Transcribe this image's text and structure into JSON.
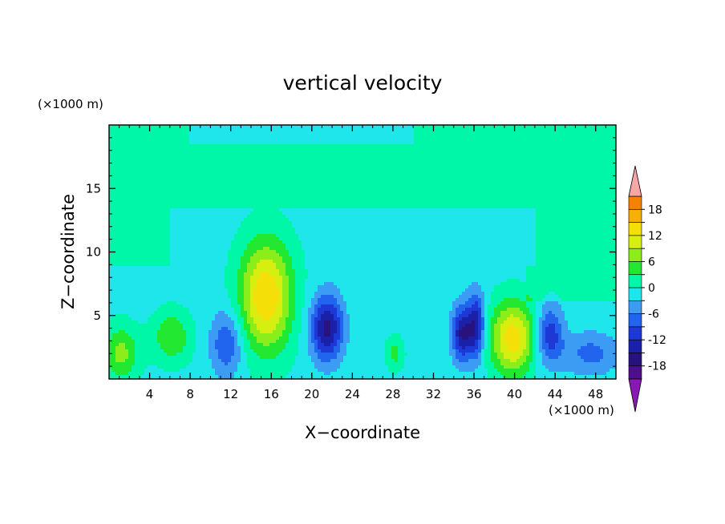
{
  "chart_data": {
    "type": "heatmap",
    "title": "vertical velocity",
    "xlabel": "X−coordinate",
    "ylabel": "Z−coordinate",
    "x_unit": "(×1000 m)",
    "y_unit": "(×1000 m)",
    "xlim": [
      0,
      50
    ],
    "ylim": [
      0,
      20
    ],
    "x_ticks": [
      4,
      8,
      12,
      16,
      20,
      24,
      28,
      32,
      36,
      40,
      44,
      48
    ],
    "y_ticks": [
      5,
      10,
      15
    ],
    "colorbar": {
      "levels": [
        -21,
        -18,
        -15,
        -12,
        -9,
        -6,
        -3,
        0,
        3,
        6,
        9,
        12,
        15,
        18,
        21
      ],
      "labels": [
        18,
        12,
        6,
        0,
        -6,
        -12,
        -18
      ],
      "colors": [
        "#4b0f8c",
        "#28137e",
        "#1a20a8",
        "#1e38d6",
        "#2164ee",
        "#3c9cf3",
        "#1ee6ea",
        "#00f7a8",
        "#22e832",
        "#8bed19",
        "#d6ef11",
        "#f5df08",
        "#f7b006",
        "#f58204",
        "#f14a04",
        "#e8160a",
        "#f7a6a6"
      ],
      "underflow_color": "#8a18b4",
      "overflow_color": "#f7a6a6"
    },
    "features": [
      {
        "x": 15.5,
        "z": 6.5,
        "w": 5.5,
        "value": 16,
        "sx": 1.8,
        "sz": 3.0
      },
      {
        "x": 39.8,
        "z": 3.2,
        "w": 5.0,
        "value": 15,
        "sx": 1.5,
        "sz": 2.0
      },
      {
        "x": 1.2,
        "z": 2.0,
        "w": 2.0,
        "value": 8,
        "sx": 1.2,
        "sz": 1.5
      },
      {
        "x": 6.2,
        "z": 3.3,
        "w": 1.7,
        "value": 7,
        "sx": 1.3,
        "sz": 1.4
      },
      {
        "x": 28.2,
        "z": 2.0,
        "w": 0.8,
        "value": 5,
        "sx": 0.6,
        "sz": 0.9
      },
      {
        "x": 21.5,
        "z": 4.0,
        "w": 3.0,
        "value": -15,
        "sx": 1.1,
        "sz": 1.8
      },
      {
        "x": 34.8,
        "z": 3.6,
        "w": 3.0,
        "value": -14,
        "sx": 0.7,
        "sz": 1.5
      },
      {
        "x": 36.2,
        "z": 4.2,
        "w": 3.0,
        "value": -13,
        "sx": 0.6,
        "sz": 1.8
      },
      {
        "x": 43.5,
        "z": 3.5,
        "w": 3.0,
        "value": -10,
        "sx": 0.9,
        "sz": 1.6
      },
      {
        "x": 11.6,
        "z": 2.8,
        "w": 2.0,
        "value": -8,
        "sx": 1.1,
        "sz": 1.8
      },
      {
        "x": 47.5,
        "z": 2.0,
        "w": 2.5,
        "value": -6,
        "sx": 2.0,
        "sz": 1.2
      }
    ]
  }
}
